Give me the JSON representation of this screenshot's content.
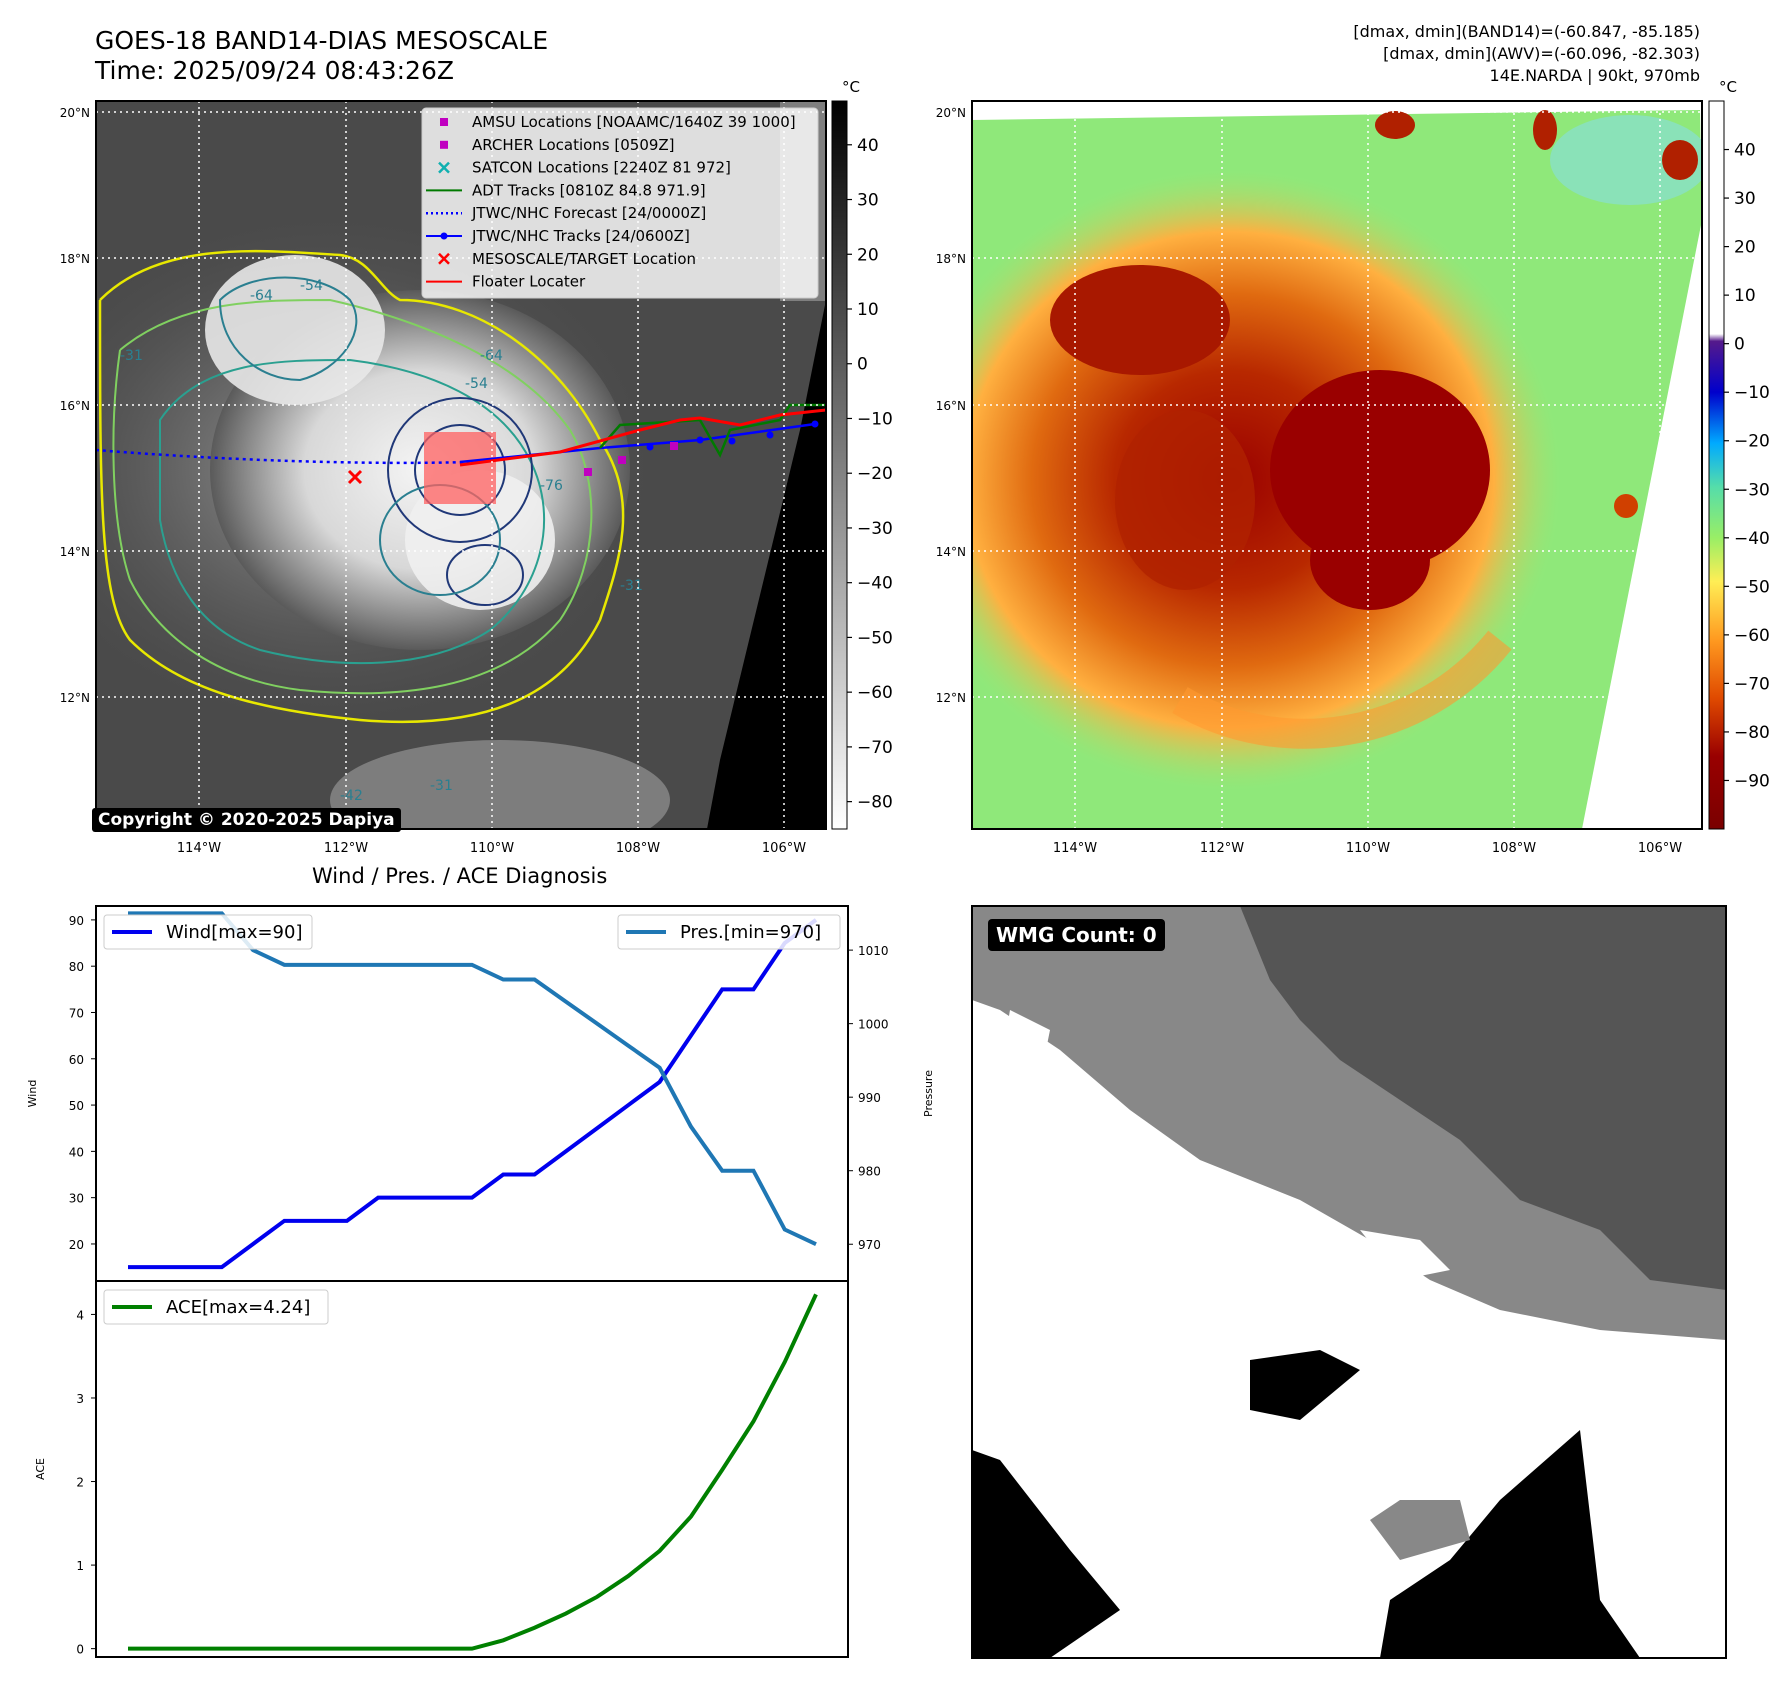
{
  "header": {
    "title_line1": "GOES-18 BAND14-DIAS MESOSCALE",
    "title_line2": "Time: 2025/09/24 08:43:26Z",
    "info_line1": "[dmax, dmin](BAND14)=(-60.847, -85.185)",
    "info_line2": "[dmax, dmin](AWV)=(-60.096, -82.303)",
    "info_line3": "14E.NARDA | 90kt, 970mb"
  },
  "map": {
    "lat_labels": [
      "20°N",
      "18°N",
      "16°N",
      "14°N",
      "12°N"
    ],
    "lon_labels": [
      "114°W",
      "112°W",
      "110°W",
      "108°W",
      "106°W"
    ],
    "copyright": "Copyright © 2020-2025 Dapiya",
    "contour_labels": [
      "-64",
      "-64",
      "-54",
      "-31",
      "-31",
      "-31",
      "-42",
      "-76",
      "-54"
    ],
    "legend": [
      {
        "label": "AMSU Locations [NOAAMC/1640Z 39 1000]",
        "color": "#c000c0",
        "marker": "square"
      },
      {
        "label": "ARCHER Locations [0509Z]",
        "color": "#c000c0",
        "marker": "square"
      },
      {
        "label": "SATCON Locations [2240Z 81 972]",
        "color": "#10b0b0",
        "marker": "x"
      },
      {
        "label": "ADT Tracks [0810Z 84.8 971.9]",
        "color": "#007a00",
        "marker": "line"
      },
      {
        "label": "JTWC/NHC Forecast [24/0000Z]",
        "color": "#0000ff",
        "marker": "dotted"
      },
      {
        "label": "JTWC/NHC Tracks [24/0600Z]",
        "color": "#0000ff",
        "marker": "dotline"
      },
      {
        "label": "MESOSCALE/TARGET Location",
        "color": "#ff0000",
        "marker": "x"
      },
      {
        "label": "Floater Locater",
        "color": "#ff0000",
        "marker": "line"
      }
    ]
  },
  "colorbar_gray": {
    "unit": "°C",
    "ticks": [
      "40",
      "30",
      "20",
      "10",
      "0",
      "−10",
      "−20",
      "−30",
      "−40",
      "−50",
      "−60",
      "−70",
      "−80"
    ],
    "range": [
      -85,
      48
    ]
  },
  "colorbar_color": {
    "unit": "°C",
    "ticks": [
      "40",
      "30",
      "20",
      "10",
      "0",
      "−10",
      "−20",
      "−30",
      "−40",
      "−50",
      "−60",
      "−70",
      "−80",
      "−90"
    ],
    "range": [
      -100,
      50
    ]
  },
  "diag_title": "Wind / Pres. / ACE Diagnosis",
  "wmg_label": "WMG Count: 0",
  "chart_data": [
    {
      "type": "line",
      "title": "Wind / Pres. / ACE Diagnosis",
      "ylabel": "Wind",
      "y2label": "Pressure",
      "ylim": [
        12,
        93
      ],
      "y2lim": [
        965,
        1016
      ],
      "yticks": [
        20,
        30,
        40,
        50,
        60,
        70,
        80,
        90
      ],
      "y2ticks": [
        970,
        980,
        990,
        1000,
        1010
      ],
      "x": [
        0,
        1,
        2,
        3,
        4,
        5,
        6,
        7,
        8,
        9,
        10,
        11,
        12,
        13,
        14,
        15,
        16,
        17,
        18,
        19,
        20,
        21,
        22
      ],
      "series": [
        {
          "name": "Wind[max=90]",
          "axis": "left",
          "color": "#0000ee",
          "values": [
            15,
            15,
            15,
            15,
            20,
            25,
            25,
            25,
            30,
            30,
            30,
            30,
            35,
            35,
            40,
            45,
            50,
            55,
            65,
            75,
            75,
            85,
            90
          ]
        },
        {
          "name": "Pres.[min=970]",
          "axis": "right",
          "color": "#1f77b4",
          "values": [
            1015,
            1015,
            1015,
            1015,
            1010,
            1008,
            1008,
            1008,
            1008,
            1008,
            1008,
            1008,
            1006,
            1006,
            1003,
            1000,
            997,
            994,
            986,
            980,
            980,
            972,
            970
          ]
        }
      ],
      "legend": [
        "top-left",
        "top-right"
      ]
    },
    {
      "type": "line",
      "ylabel": "ACE",
      "ylim": [
        -0.1,
        4.4
      ],
      "yticks": [
        0,
        1,
        2,
        3,
        4
      ],
      "x": [
        0,
        1,
        2,
        3,
        4,
        5,
        6,
        7,
        8,
        9,
        10,
        11,
        12,
        13,
        14,
        15,
        16,
        17,
        18,
        19,
        20,
        21,
        22
      ],
      "series": [
        {
          "name": "ACE[max=4.24]",
          "color": "#008000",
          "values": [
            0,
            0,
            0,
            0,
            0,
            0,
            0,
            0,
            0,
            0,
            0,
            0,
            0.1,
            0.25,
            0.42,
            0.62,
            0.87,
            1.17,
            1.58,
            2.14,
            2.72,
            3.43,
            4.24
          ]
        }
      ],
      "legend": "top-left"
    }
  ]
}
